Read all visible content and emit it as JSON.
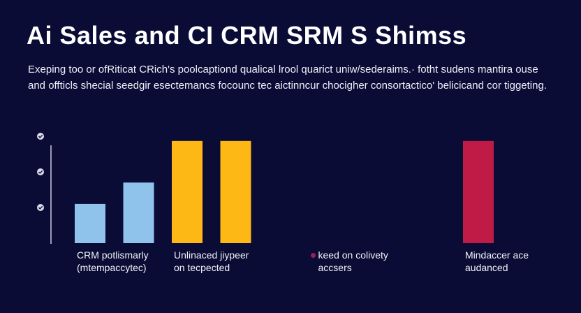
{
  "title": "Ai Sales and CI  CRM  SRM  S  Shimss",
  "subtitle_lines": [
    "Exeping too or ofRiticat CRich's poolcaptiond qualical lrool quarict uniw/sederaims.· fotht sudens mantira ouse",
    "and offticls shecial seedgir esectemancs focounc tec aictinncur chocigher consortactico' belicicand cor tiggeting."
  ],
  "colors": {
    "background": "#0a0c36",
    "light_blue": "#8fc3ec",
    "yellow": "#fdb815",
    "crimson": "#c01b47",
    "axis": "#c9cbd8",
    "bullet": "#9a1e5c"
  },
  "chart_data": {
    "type": "bar",
    "ylim": [
      0,
      100
    ],
    "grid": false,
    "y_tick_marker": "check-circle-icon",
    "y_ticks": [
      30,
      60,
      90
    ],
    "bars": [
      {
        "slot": 0,
        "value": 33,
        "color": "light_blue"
      },
      {
        "slot": 1,
        "value": 51,
        "color": "light_blue"
      },
      {
        "slot": 2,
        "value": 86,
        "color": "yellow"
      },
      {
        "slot": 3,
        "value": 86,
        "color": "yellow"
      },
      {
        "slot": 8,
        "value": 86,
        "color": "crimson"
      }
    ],
    "category_labels": [
      {
        "slot": 0,
        "lines": [
          "CRM potlismarly",
          "(mtempaccytec)"
        ],
        "bullet": false
      },
      {
        "slot": 2,
        "lines": [
          "Unlinaced jiypeer",
          "on tecpected"
        ],
        "bullet": false
      },
      {
        "slot": 5,
        "lines": [
          "keed on colivety",
          "accsers"
        ],
        "bullet": true
      },
      {
        "slot": 8,
        "lines": [
          "Mindaccer ace",
          "audanced"
        ],
        "bullet": false
      }
    ]
  }
}
